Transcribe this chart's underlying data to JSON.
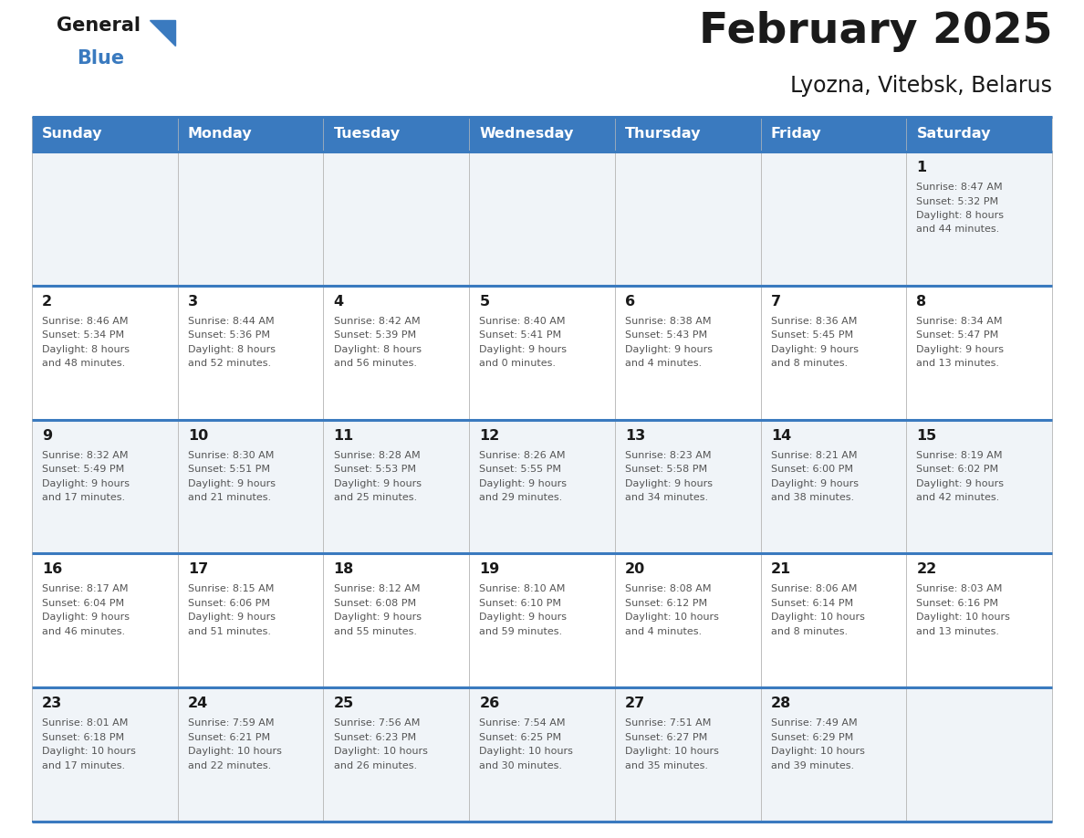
{
  "title": "February 2025",
  "subtitle": "Lyozna, Vitebsk, Belarus",
  "header_color": "#3a7abf",
  "header_text_color": "#ffffff",
  "days_of_week": [
    "Sunday",
    "Monday",
    "Tuesday",
    "Wednesday",
    "Thursday",
    "Friday",
    "Saturday"
  ],
  "cell_bg_color": "#ffffff",
  "border_color": "#3a7abf",
  "text_color": "#555555",
  "day_num_color": "#1a1a1a",
  "calendar": [
    [
      null,
      null,
      null,
      null,
      null,
      null,
      {
        "day": 1,
        "sunrise": "8:47 AM",
        "sunset": "5:32 PM",
        "daylight": "8 hours and 44 minutes"
      }
    ],
    [
      {
        "day": 2,
        "sunrise": "8:46 AM",
        "sunset": "5:34 PM",
        "daylight": "8 hours and 48 minutes"
      },
      {
        "day": 3,
        "sunrise": "8:44 AM",
        "sunset": "5:36 PM",
        "daylight": "8 hours and 52 minutes"
      },
      {
        "day": 4,
        "sunrise": "8:42 AM",
        "sunset": "5:39 PM",
        "daylight": "8 hours and 56 minutes"
      },
      {
        "day": 5,
        "sunrise": "8:40 AM",
        "sunset": "5:41 PM",
        "daylight": "9 hours and 0 minutes"
      },
      {
        "day": 6,
        "sunrise": "8:38 AM",
        "sunset": "5:43 PM",
        "daylight": "9 hours and 4 minutes"
      },
      {
        "day": 7,
        "sunrise": "8:36 AM",
        "sunset": "5:45 PM",
        "daylight": "9 hours and 8 minutes"
      },
      {
        "day": 8,
        "sunrise": "8:34 AM",
        "sunset": "5:47 PM",
        "daylight": "9 hours and 13 minutes"
      }
    ],
    [
      {
        "day": 9,
        "sunrise": "8:32 AM",
        "sunset": "5:49 PM",
        "daylight": "9 hours and 17 minutes"
      },
      {
        "day": 10,
        "sunrise": "8:30 AM",
        "sunset": "5:51 PM",
        "daylight": "9 hours and 21 minutes"
      },
      {
        "day": 11,
        "sunrise": "8:28 AM",
        "sunset": "5:53 PM",
        "daylight": "9 hours and 25 minutes"
      },
      {
        "day": 12,
        "sunrise": "8:26 AM",
        "sunset": "5:55 PM",
        "daylight": "9 hours and 29 minutes"
      },
      {
        "day": 13,
        "sunrise": "8:23 AM",
        "sunset": "5:58 PM",
        "daylight": "9 hours and 34 minutes"
      },
      {
        "day": 14,
        "sunrise": "8:21 AM",
        "sunset": "6:00 PM",
        "daylight": "9 hours and 38 minutes"
      },
      {
        "day": 15,
        "sunrise": "8:19 AM",
        "sunset": "6:02 PM",
        "daylight": "9 hours and 42 minutes"
      }
    ],
    [
      {
        "day": 16,
        "sunrise": "8:17 AM",
        "sunset": "6:04 PM",
        "daylight": "9 hours and 46 minutes"
      },
      {
        "day": 17,
        "sunrise": "8:15 AM",
        "sunset": "6:06 PM",
        "daylight": "9 hours and 51 minutes"
      },
      {
        "day": 18,
        "sunrise": "8:12 AM",
        "sunset": "6:08 PM",
        "daylight": "9 hours and 55 minutes"
      },
      {
        "day": 19,
        "sunrise": "8:10 AM",
        "sunset": "6:10 PM",
        "daylight": "9 hours and 59 minutes"
      },
      {
        "day": 20,
        "sunrise": "8:08 AM",
        "sunset": "6:12 PM",
        "daylight": "10 hours and 4 minutes"
      },
      {
        "day": 21,
        "sunrise": "8:06 AM",
        "sunset": "6:14 PM",
        "daylight": "10 hours and 8 minutes"
      },
      {
        "day": 22,
        "sunrise": "8:03 AM",
        "sunset": "6:16 PM",
        "daylight": "10 hours and 13 minutes"
      }
    ],
    [
      {
        "day": 23,
        "sunrise": "8:01 AM",
        "sunset": "6:18 PM",
        "daylight": "10 hours and 17 minutes"
      },
      {
        "day": 24,
        "sunrise": "7:59 AM",
        "sunset": "6:21 PM",
        "daylight": "10 hours and 22 minutes"
      },
      {
        "day": 25,
        "sunrise": "7:56 AM",
        "sunset": "6:23 PM",
        "daylight": "10 hours and 26 minutes"
      },
      {
        "day": 26,
        "sunrise": "7:54 AM",
        "sunset": "6:25 PM",
        "daylight": "10 hours and 30 minutes"
      },
      {
        "day": 27,
        "sunrise": "7:51 AM",
        "sunset": "6:27 PM",
        "daylight": "10 hours and 35 minutes"
      },
      {
        "day": 28,
        "sunrise": "7:49 AM",
        "sunset": "6:29 PM",
        "daylight": "10 hours and 39 minutes"
      },
      null
    ]
  ]
}
